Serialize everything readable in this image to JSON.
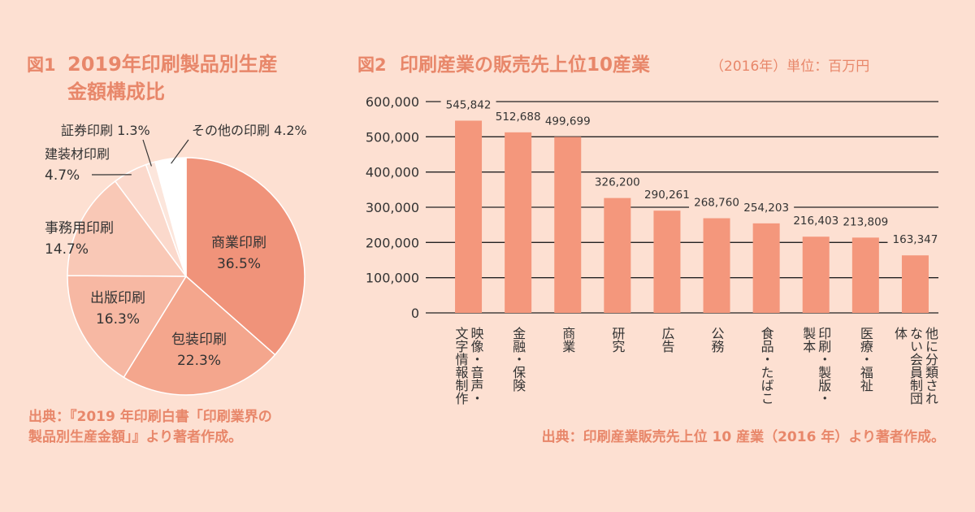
{
  "chart_data": [
    {
      "type": "pie",
      "fig_label": "図1",
      "title_lines": [
        "2019年印刷製品別生産",
        "金額構成比"
      ],
      "slices": [
        {
          "label": "商業印刷",
          "pct_label": "36.5%",
          "value": 36.5,
          "color": "#f0937a"
        },
        {
          "label": "包装印刷",
          "pct_label": "22.3%",
          "value": 22.3,
          "color": "#f4a68d"
        },
        {
          "label": "出版印刷",
          "pct_label": "16.3%",
          "value": 16.3,
          "color": "#f7b8a3"
        },
        {
          "label": "事務用印刷",
          "pct_label": "14.7%",
          "value": 14.7,
          "color": "#f9c8b6"
        },
        {
          "label": "建装材印刷",
          "pct_label": "4.7%",
          "value": 4.7,
          "color": "#fbd9cc"
        },
        {
          "label": "証券印刷",
          "pct_label": "1.3%",
          "value": 1.3,
          "color": "#fce6dc"
        },
        {
          "label": "その他の印刷",
          "pct_label": "4.2%",
          "value": 4.2,
          "color": "#ffffff"
        }
      ],
      "source_lines": [
        "出典：『2019 年印刷白書「印刷業界の",
        "製品別生産金額」』より著者作成。"
      ]
    },
    {
      "type": "bar",
      "fig_label": "図2",
      "title": "印刷産業の販売先上位10産業",
      "subtitle": "（2016年）単位：百万円",
      "ylim": [
        0,
        600000
      ],
      "yticks": [
        "0",
        "100,000",
        "200,000",
        "300,000",
        "400,000",
        "500,000",
        "600,000"
      ],
      "bar_color": "#f4977c",
      "bars": [
        {
          "value": 545842,
          "value_label": "545,842",
          "label_cols": [
            "映像・音声・",
            "文字情報制作"
          ]
        },
        {
          "value": 512688,
          "value_label": "512,688",
          "label_cols": [
            "金融・保険"
          ]
        },
        {
          "value": 499699,
          "value_label": "499,699",
          "label_cols": [
            "商業"
          ]
        },
        {
          "value": 326200,
          "value_label": "326,200",
          "label_cols": [
            "研究"
          ]
        },
        {
          "value": 290261,
          "value_label": "290,261",
          "label_cols": [
            "広告"
          ]
        },
        {
          "value": 268760,
          "value_label": "268,760",
          "label_cols": [
            "公務"
          ]
        },
        {
          "value": 254203,
          "value_label": "254,203",
          "label_cols": [
            "食品・たばこ"
          ]
        },
        {
          "value": 216403,
          "value_label": "216,403",
          "label_cols": [
            "印刷・製版・",
            "製本"
          ]
        },
        {
          "value": 213809,
          "value_label": "213,809",
          "label_cols": [
            "医療・福祉"
          ]
        },
        {
          "value": 163347,
          "value_label": "163,347",
          "label_cols": [
            "他に分類され",
            "ない会員制団",
            "体"
          ]
        }
      ],
      "source": "出典：印刷産業販売先上位 10 産業（2016 年）より著者作成。"
    }
  ]
}
